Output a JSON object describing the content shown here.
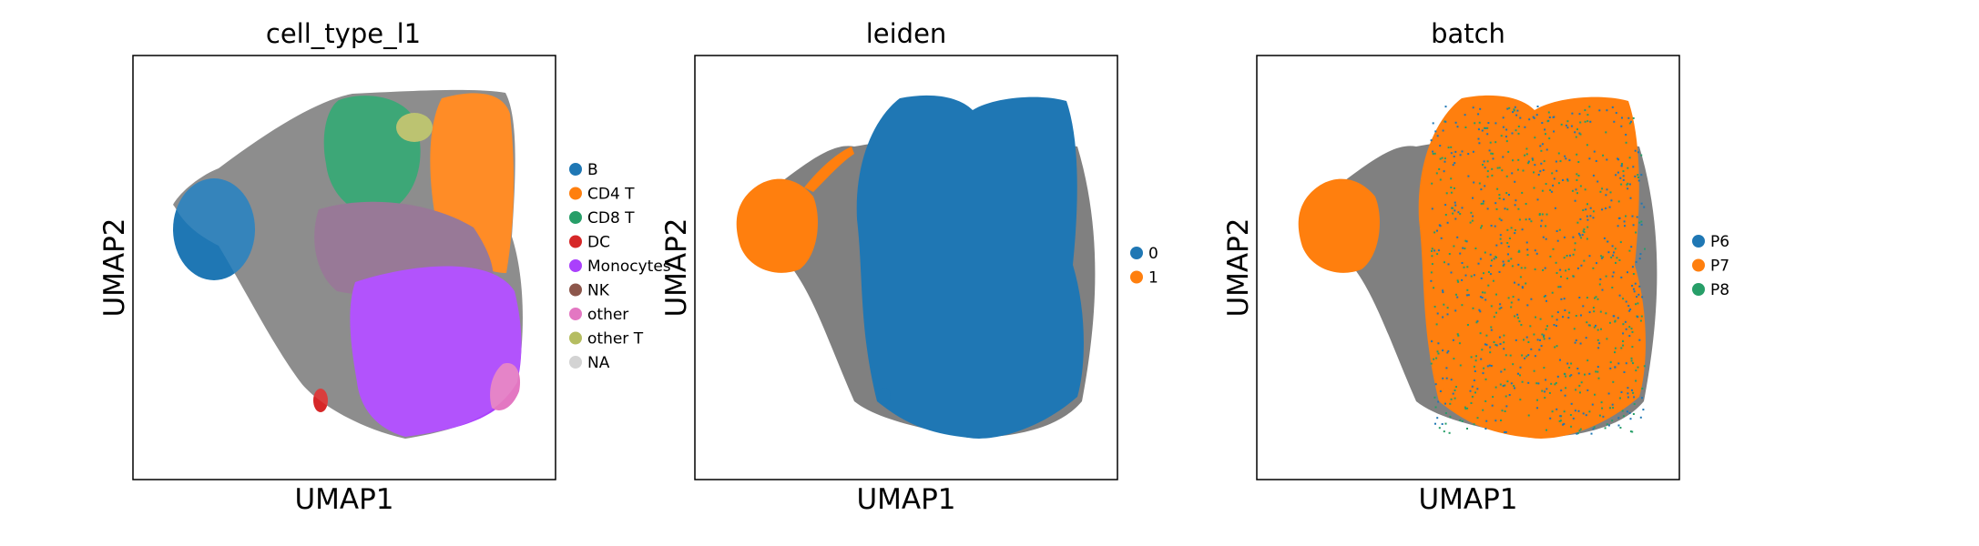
{
  "chart_data": [
    {
      "type": "scatter",
      "title": "cell_type_l1",
      "xlabel": "UMAP1",
      "ylabel": "UMAP2",
      "grid": false,
      "ticks": false,
      "legend_placement": "right",
      "legend": [
        {
          "name": "B",
          "color": "#1f77b4"
        },
        {
          "name": "CD4 T",
          "color": "#ff7f0e"
        },
        {
          "name": "CD8 T",
          "color": "#279e68"
        },
        {
          "name": "DC",
          "color": "#d62728"
        },
        {
          "name": "Monocytes",
          "color": "#aa40fc"
        },
        {
          "name": "NK",
          "color": "#8c564b"
        },
        {
          "name": "other",
          "color": "#e377c2"
        },
        {
          "name": "other T",
          "color": "#b5bd61"
        },
        {
          "name": "NA",
          "color": "#d3d3d3"
        }
      ]
    },
    {
      "type": "scatter",
      "title": "leiden",
      "xlabel": "UMAP1",
      "ylabel": "UMAP2",
      "grid": false,
      "ticks": false,
      "legend_placement": "right",
      "legend": [
        {
          "name": "0",
          "color": "#1f77b4"
        },
        {
          "name": "1",
          "color": "#ff7f0e"
        }
      ]
    },
    {
      "type": "scatter",
      "title": "batch",
      "xlabel": "UMAP1",
      "ylabel": "UMAP2",
      "grid": false,
      "ticks": false,
      "legend_placement": "right",
      "legend": [
        {
          "name": "P6",
          "color": "#1f77b4"
        },
        {
          "name": "P7",
          "color": "#ff7f0e"
        },
        {
          "name": "P8",
          "color": "#279e68"
        }
      ]
    }
  ],
  "edge_color": "#808080"
}
